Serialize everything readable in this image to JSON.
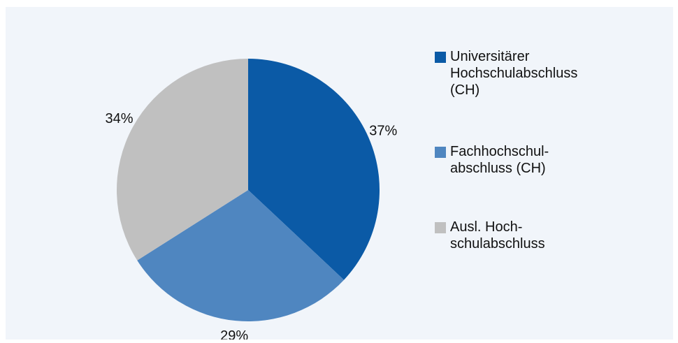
{
  "chart_data": {
    "type": "pie",
    "series": [
      {
        "name": "Universitärer\nHochschulabschluss\n(CH)",
        "color": "#0b5aa6",
        "values": [
          37
        ],
        "value_labels": [
          "37%"
        ]
      },
      {
        "name": "Fachhochschul-\nabschluss (CH)",
        "color": "#4f86c0",
        "values": [
          29
        ],
        "value_labels": [
          "29%"
        ]
      },
      {
        "name": "Ausl. Hoch-\nschulabschluss",
        "color": "#c0c0c0",
        "values": [
          34
        ],
        "value_labels": [
          "34%"
        ]
      }
    ],
    "legend": "right"
  }
}
